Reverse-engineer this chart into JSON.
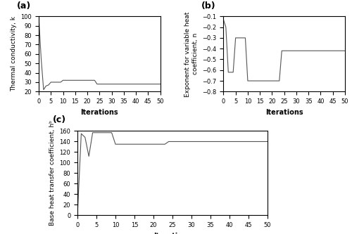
{
  "title_a": "(a)",
  "title_b": "(b)",
  "title_c": "(c)",
  "xlabel": "Iterations",
  "ylabel_a": "Thermal conductivity, k",
  "ylabel_b": "Exponent for variable heat\ncoefficient, n",
  "ylabel_c": "Base heat transfer coefficient, hᵇ",
  "xlim": [
    0,
    50
  ],
  "ylim_a": [
    20,
    100
  ],
  "ylim_b": [
    -0.8,
    -0.1
  ],
  "ylim_c": [
    0,
    160
  ],
  "yticks_a": [
    20,
    30,
    40,
    50,
    60,
    70,
    80,
    90,
    100
  ],
  "yticks_b": [
    -0.8,
    -0.7,
    -0.6,
    -0.5,
    -0.4,
    -0.3,
    -0.2,
    -0.1
  ],
  "yticks_c": [
    0,
    20,
    40,
    60,
    80,
    100,
    120,
    140,
    160
  ],
  "xticks": [
    0,
    5,
    10,
    15,
    20,
    25,
    30,
    35,
    40,
    45,
    50
  ],
  "line_color": "#555555",
  "background": "#ffffff",
  "k_x": [
    0,
    1,
    2,
    3,
    4,
    5,
    6,
    7,
    8,
    9,
    10,
    11,
    12,
    13,
    14,
    15,
    16,
    17,
    18,
    19,
    20,
    21,
    22,
    23,
    24,
    25,
    26,
    27,
    28,
    29,
    30,
    31,
    32,
    33,
    34,
    35,
    36,
    37,
    38,
    39,
    40,
    41,
    42,
    43,
    44,
    45,
    46,
    47,
    48,
    49,
    50
  ],
  "k_y": [
    100,
    55,
    22,
    26,
    27,
    30,
    30,
    30,
    30,
    30,
    32,
    32,
    32,
    32,
    32,
    32,
    32,
    32,
    32,
    32,
    32,
    32,
    32,
    32,
    28,
    28,
    28,
    28,
    28,
    28,
    28,
    28,
    28,
    28,
    28,
    28,
    28,
    28,
    28,
    28,
    28,
    28,
    28,
    28,
    28,
    28,
    28,
    28,
    28,
    28,
    28
  ],
  "n_x": [
    0,
    1,
    2,
    3,
    4,
    5,
    6,
    7,
    8,
    9,
    10,
    11,
    12,
    13,
    14,
    15,
    16,
    17,
    18,
    19,
    20,
    21,
    22,
    23,
    24,
    25,
    26,
    27,
    28,
    29,
    30,
    31,
    32,
    33,
    34,
    35,
    36,
    37,
    38,
    39,
    40,
    41,
    42,
    43,
    44,
    45,
    46,
    47,
    48,
    49,
    50
  ],
  "n_y": [
    -0.13,
    -0.2,
    -0.62,
    -0.62,
    -0.62,
    -0.3,
    -0.3,
    -0.3,
    -0.3,
    -0.3,
    -0.7,
    -0.7,
    -0.7,
    -0.7,
    -0.7,
    -0.7,
    -0.7,
    -0.7,
    -0.7,
    -0.7,
    -0.7,
    -0.7,
    -0.7,
    -0.7,
    -0.42,
    -0.42,
    -0.42,
    -0.42,
    -0.42,
    -0.42,
    -0.42,
    -0.42,
    -0.42,
    -0.42,
    -0.42,
    -0.42,
    -0.42,
    -0.42,
    -0.42,
    -0.42,
    -0.42,
    -0.42,
    -0.42,
    -0.42,
    -0.42,
    -0.42,
    -0.42,
    -0.42,
    -0.42,
    -0.42,
    -0.42
  ],
  "h_x": [
    0,
    1,
    2,
    3,
    4,
    5,
    6,
    7,
    8,
    9,
    10,
    11,
    12,
    13,
    14,
    15,
    16,
    17,
    18,
    19,
    20,
    21,
    22,
    23,
    24,
    25,
    26,
    27,
    28,
    29,
    30,
    31,
    32,
    33,
    34,
    35,
    36,
    37,
    38,
    39,
    40,
    41,
    42,
    43,
    44,
    45,
    46,
    47,
    48,
    49,
    50
  ],
  "h_y": [
    0,
    155,
    148,
    112,
    157,
    157,
    157,
    157,
    157,
    157,
    135,
    135,
    135,
    135,
    135,
    135,
    135,
    135,
    135,
    135,
    135,
    135,
    135,
    135,
    140,
    140,
    140,
    140,
    140,
    140,
    140,
    140,
    140,
    140,
    140,
    140,
    140,
    140,
    140,
    140,
    140,
    140,
    140,
    140,
    140,
    140,
    140,
    140,
    140,
    140,
    140
  ]
}
